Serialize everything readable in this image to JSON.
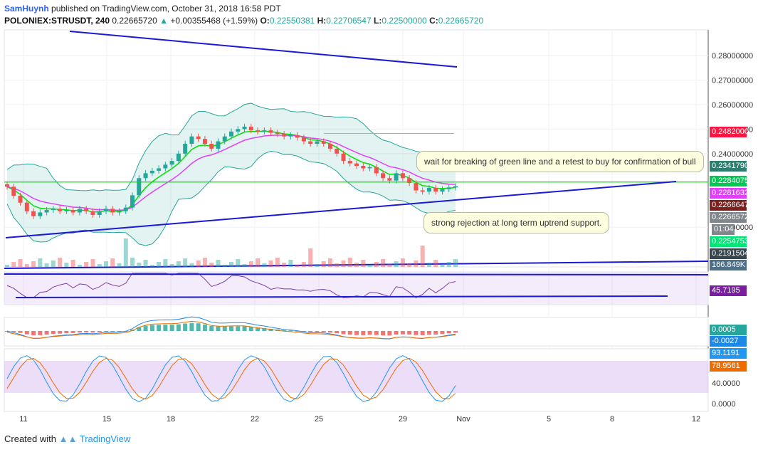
{
  "header": {
    "author": "SamHuynh",
    "published": "published on TradingView.com, October 31, 2018 16:58 PDT",
    "symbol": "POLONIEX:STRUSDT, 240",
    "last": "0.22665720",
    "arrow": "▲",
    "change": "+0.00355468 (+1.59%)",
    "o_label": "O:",
    "o": "0.22550381",
    "h_label": "H:",
    "h": "0.22706547",
    "l_label": "L:",
    "l": "0.22500000",
    "c_label": "C:",
    "c": "0.22665720"
  },
  "annotations": {
    "top": "wait for breaking of green line and a retest to buy for confirmation of bull",
    "bottom": "strong rejection at long term uptrend support."
  },
  "price_tags": [
    {
      "label": "0.24820000",
      "color": "#ff1744"
    },
    {
      "label": "0.23417907",
      "color": "#2e7d6f"
    },
    {
      "label": "0.22840759",
      "color": "#00c853"
    },
    {
      "label": "0.22816320",
      "color": "#e040fb"
    },
    {
      "label": "0.22666474",
      "color": "#7b1f1f"
    },
    {
      "label": "0.22665720",
      "color": "#80868b"
    },
    {
      "label": "01:04",
      "color": "#80868b"
    },
    {
      "label": "0.22547539",
      "color": "#00e676"
    },
    {
      "label": "0.21915041",
      "color": "#37474f"
    },
    {
      "label": "166.849K",
      "color": "#4c6f8a"
    }
  ],
  "indicator_tags": [
    {
      "label": "45.7195",
      "color": "#7b1fa2"
    },
    {
      "label": "0.0005",
      "color": "#26a69a"
    },
    {
      "label": "-0.0027",
      "color": "#1e88e5"
    },
    {
      "label": "93.1191",
      "color": "#2196f3"
    },
    {
      "label": "78.9561",
      "color": "#ef6c00"
    }
  ],
  "footer": {
    "created": "Created with",
    "brand": "TradingView"
  },
  "colors": {
    "up": "#26a69a",
    "down": "#ef5350",
    "trend": "#1a1ad6",
    "bb": "#26a69a",
    "ema_fast": "#00e000",
    "ema_slow": "#e040fb"
  },
  "chart_data": {
    "type": "candlestick",
    "timeframe": "240",
    "x_ticks": [
      "11",
      "15",
      "18",
      "22",
      "25",
      "29",
      "Nov",
      "5",
      "8",
      "12"
    ],
    "y_ticks": [
      "0.28000000",
      "0.27000000",
      "0.26000000",
      "0.25000000",
      "0.24000000",
      "0.21000000"
    ],
    "y_range": [
      0.205,
      0.283
    ],
    "close_series": [
      0.2265,
      0.2228,
      0.22,
      0.2165,
      0.2145,
      0.216,
      0.217,
      0.2175,
      0.2165,
      0.217,
      0.216,
      0.2175,
      0.2165,
      0.215,
      0.2165,
      0.2175,
      0.216,
      0.2165,
      0.218,
      0.223,
      0.23,
      0.232,
      0.233,
      0.234,
      0.2355,
      0.237,
      0.24,
      0.244,
      0.247,
      0.246,
      0.244,
      0.242,
      0.245,
      0.247,
      0.249,
      0.25,
      0.251,
      0.2495,
      0.249,
      0.2495,
      0.2485,
      0.248,
      0.247,
      0.2475,
      0.2465,
      0.245,
      0.244,
      0.245,
      0.244,
      0.242,
      0.24,
      0.237,
      0.236,
      0.235,
      0.234,
      0.2345,
      0.232,
      0.23,
      0.229,
      0.232,
      0.23,
      0.228,
      0.225,
      0.2245,
      0.226,
      0.2245,
      0.2255,
      0.2262,
      0.2267
    ],
    "trendlines": [
      {
        "name": "long term uptrend support",
        "from": [
          0.2152,
          "11"
        ],
        "to": [
          0.2285,
          "12"
        ]
      },
      {
        "name": "downtrend resistance",
        "from": [
          0.288,
          "12 (prev)"
        ],
        "to": [
          0.2745,
          "31"
        ]
      }
    ],
    "horizontal_levels": [
      0.2284,
      0.2482
    ],
    "rsi": {
      "value": 45.7195
    },
    "macd": {
      "histogram": 0.0005,
      "signal": -0.0027
    },
    "stoch": {
      "k": 93.1191,
      "d": 78.9561,
      "ticks": [
        "40.0000",
        "0.0000"
      ]
    }
  }
}
